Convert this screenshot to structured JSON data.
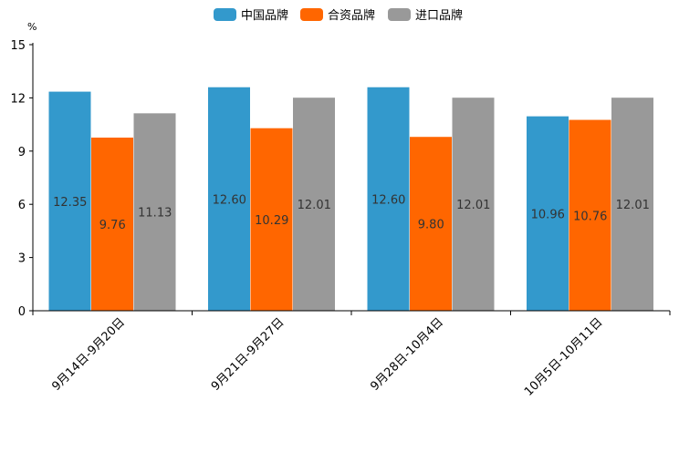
{
  "chart_data": {
    "type": "bar",
    "unit": "%",
    "categories": [
      "9月14日-9月20日",
      "9月21日-9月27日",
      "9月28日-10月4日",
      "10月5日-10月11日"
    ],
    "series": [
      {
        "name": "中国品牌",
        "color": "#3399CC",
        "values": [
          12.35,
          12.6,
          12.6,
          10.96
        ],
        "labels": [
          "12.35",
          "12.60",
          "12.60",
          "10.96"
        ]
      },
      {
        "name": "合资品牌",
        "color": "#FF6600",
        "values": [
          9.76,
          10.29,
          9.8,
          10.76
        ],
        "labels": [
          "9.76",
          "10.29",
          "9.80",
          "10.76"
        ]
      },
      {
        "name": "进口品牌",
        "color": "#999999",
        "values": [
          11.13,
          12.01,
          12.01,
          12.01
        ],
        "labels": [
          "11.13",
          "12.01",
          "12.01",
          "12.01"
        ]
      }
    ],
    "yticks": [
      0,
      3,
      6,
      9,
      12,
      15
    ],
    "ylim": [
      0,
      15
    ],
    "legend_position": "top-center",
    "grid": false
  }
}
